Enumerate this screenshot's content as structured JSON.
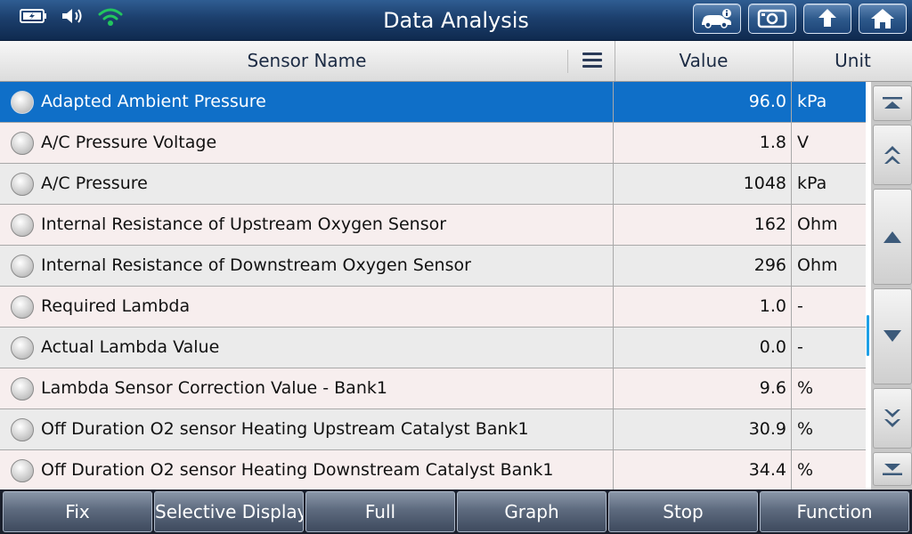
{
  "window": {
    "title": "Data Analysis",
    "status_icons": [
      "battery-charging-icon",
      "speaker-icon",
      "wifi-icon"
    ],
    "toolbar_buttons": [
      "vehicle-info-icon",
      "screenshot-icon",
      "back-icon",
      "home-icon"
    ]
  },
  "table": {
    "headers": {
      "name": "Sensor Name",
      "value": "Value",
      "unit": "Unit"
    },
    "rows": [
      {
        "name": "Adapted Ambient Pressure",
        "value": "96.0",
        "unit": "kPa",
        "selected": true
      },
      {
        "name": "A/C Pressure Voltage",
        "value": "1.8",
        "unit": "V"
      },
      {
        "name": "A/C Pressure",
        "value": "1048",
        "unit": "kPa"
      },
      {
        "name": "Internal Resistance of Upstream Oxygen Sensor",
        "value": "162",
        "unit": "Ohm"
      },
      {
        "name": "Internal Resistance of Downstream Oxygen Sensor",
        "value": "296",
        "unit": "Ohm"
      },
      {
        "name": "Required Lambda",
        "value": "1.0",
        "unit": "-"
      },
      {
        "name": "Actual Lambda Value",
        "value": "0.0",
        "unit": "-"
      },
      {
        "name": "Lambda Sensor Correction Value - Bank1",
        "value": "9.6",
        "unit": "%"
      },
      {
        "name": "Off Duration O2 sensor Heating Upstream Catalyst Bank1",
        "value": "30.9",
        "unit": "%"
      },
      {
        "name": "Off Duration O2 sensor Heating Downstream Catalyst Bank1",
        "value": "34.4",
        "unit": "%"
      }
    ]
  },
  "scroll_buttons": [
    "scroll-top-icon",
    "page-up-icon",
    "line-up-icon",
    "line-down-icon",
    "page-down-icon",
    "scroll-bottom-icon"
  ],
  "bottom_toolbar": {
    "fix": "Fix",
    "selective_display": "Selective Display",
    "full": "Full",
    "graph": "Graph",
    "stop": "Stop",
    "function": "Function"
  },
  "colors": {
    "title_bar": "#1c3f6d",
    "selected_row": "#0f6fc8",
    "wifi": "#22c55e",
    "scroll_thumb": "#1ea0e6"
  }
}
